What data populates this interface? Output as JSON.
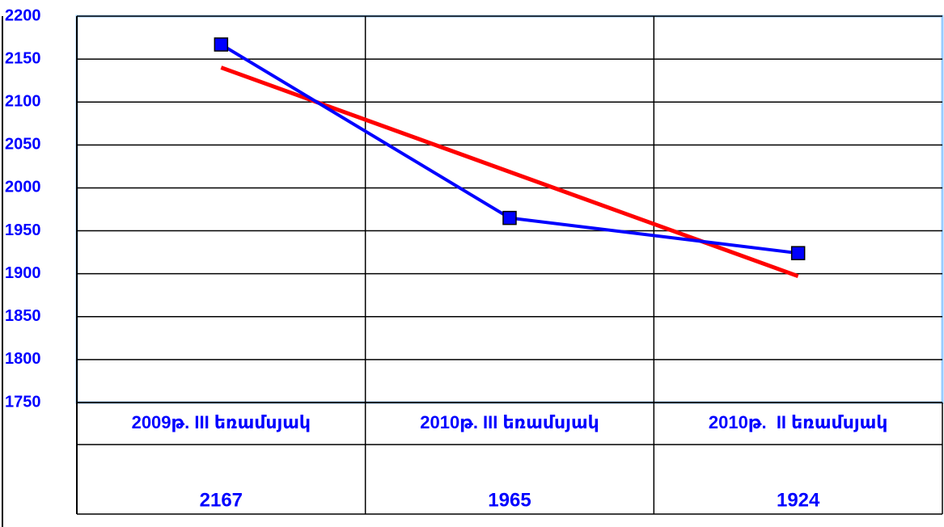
{
  "chart_data": {
    "type": "line",
    "categories": [
      "2009թ. III եռամսյակ",
      "2010թ. III եռամսյակ",
      "2010թ.  II եռամսյակ"
    ],
    "series": [
      {
        "color": "#0000ff",
        "values": [
          2167,
          1965,
          1924
        ]
      },
      {
        "color": "#ff0000",
        "values": [
          2140.17,
          2018.67,
          1897.17
        ]
      }
    ],
    "ylim": [
      1750,
      2200
    ],
    "yticks": [
      1750,
      1800,
      1850,
      1900,
      1950,
      2000,
      2050,
      2100,
      2150,
      2200
    ],
    "grid": true
  }
}
